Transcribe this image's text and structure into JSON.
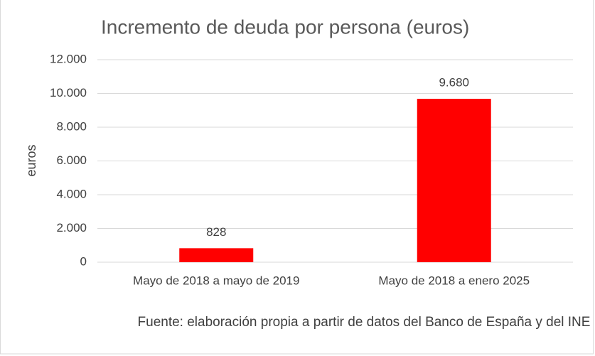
{
  "chart_data": {
    "type": "bar",
    "title": "Incremento de deuda por persona (euros)",
    "y_label": "euros",
    "categories": [
      "Mayo de 2018 a mayo de 2019",
      "Mayo de 2018 a enero 2025"
    ],
    "values": [
      828,
      9680
    ],
    "value_labels": [
      "828",
      "9.680"
    ],
    "color": "#ff0000",
    "ylim": [
      0,
      12000
    ],
    "yticks": [
      0,
      {
        "value": 2000,
        "label": "2.000"
      },
      {
        "value": 4000,
        "label": "4.000"
      },
      {
        "value": 6000,
        "label": "6.000"
      },
      {
        "value": 8000,
        "label": "8.000"
      },
      {
        "value": 10000,
        "label": "10.000"
      },
      {
        "value": 12000,
        "label": "12.000"
      }
    ],
    "grid": true,
    "source": "Fuente: elaboración propia a partir de datos del Banco de España y del INE"
  }
}
